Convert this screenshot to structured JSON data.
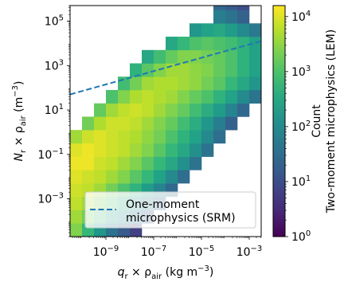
{
  "chart_data": {
    "type": "heatmap",
    "title": "",
    "xscale": "log",
    "yscale": "log",
    "xlim_log10": [
      -10.5,
      -2.5
    ],
    "ylim_log10": [
      -4.7,
      5.7
    ],
    "xlabel": {
      "main": "q",
      "sub1": "r",
      "mid": " × ρ",
      "sub2": "air",
      "unit": " (kg m",
      "exp": "−3",
      "close": ")"
    },
    "ylabel": {
      "main": "N",
      "sub1": "r",
      "mid": " × ρ",
      "sub2": "air",
      "unit": " (m",
      "exp": "−3",
      "close": ")"
    },
    "xticks": [
      {
        "log": -9,
        "base": "10",
        "exp": "−9"
      },
      {
        "log": -7,
        "base": "10",
        "exp": "−7"
      },
      {
        "log": -5,
        "base": "10",
        "exp": "−5"
      },
      {
        "log": -3,
        "base": "10",
        "exp": "−3"
      }
    ],
    "yticks": [
      {
        "log": -3,
        "base": "10",
        "exp": "−3"
      },
      {
        "log": -1,
        "base": "10",
        "exp": "−1"
      },
      {
        "log": 1,
        "base": "10",
        "exp": "1"
      },
      {
        "log": 3,
        "base": "10",
        "exp": "3"
      },
      {
        "log": 5,
        "base": "10",
        "exp": "5"
      }
    ],
    "bin_width_log10": 0.5,
    "bin_height_log10": 0.6,
    "colorbar": {
      "label_line1": "Count",
      "label_line2": "Two-moment microphysics (LEM)",
      "scale": "log",
      "range_log10": [
        0,
        4.2
      ],
      "ticks": [
        {
          "log": 0,
          "base": "10",
          "exp": "0"
        },
        {
          "log": 1,
          "base": "10",
          "exp": "1"
        },
        {
          "log": 2,
          "base": "10",
          "exp": "2"
        },
        {
          "log": 3,
          "base": "10",
          "exp": "3"
        },
        {
          "log": 4,
          "base": "10",
          "exp": "4"
        }
      ]
    },
    "line": {
      "name": "One-moment microphysics (SRM)",
      "style": "dashed",
      "color": "#1f77b4",
      "points_log10": [
        [
          -10.5,
          1.7
        ],
        [
          -2.5,
          4.1
        ]
      ]
    },
    "legend": {
      "location": "lower center",
      "line1": "One-moment",
      "line2": "microphysics (SRM)"
    },
    "rows": [
      {
        "ylow": -4.7,
        "x0": -10.5,
        "log_counts": [
          3.4,
          2.8,
          2.2,
          1.6,
          1.2,
          0.8
        ]
      },
      {
        "ylow": -4.1,
        "x0": -10.5,
        "log_counts": [
          3.6,
          3.3,
          2.9,
          2.5,
          2.0,
          1.6,
          1.2
        ]
      },
      {
        "ylow": -3.5,
        "x0": -10.5,
        "log_counts": [
          3.8,
          3.6,
          3.3,
          3.0,
          2.6,
          2.2,
          1.8,
          1.3
        ]
      },
      {
        "ylow": -2.9,
        "x0": -10.5,
        "log_counts": [
          3.9,
          3.8,
          3.6,
          3.3,
          3.0,
          2.7,
          2.3,
          1.9,
          1.4
        ]
      },
      {
        "ylow": -2.3,
        "x0": -10.5,
        "log_counts": [
          4.0,
          3.9,
          3.8,
          3.6,
          3.4,
          3.1,
          2.8,
          2.4,
          2.0,
          1.5
        ]
      },
      {
        "ylow": -1.7,
        "x0": -10.5,
        "log_counts": [
          4.1,
          4.1,
          3.9,
          3.8,
          3.6,
          3.4,
          3.1,
          2.8,
          2.5,
          2.1,
          1.6
        ]
      },
      {
        "ylow": -1.1,
        "x0": -10.5,
        "log_counts": [
          4.0,
          4.1,
          4.0,
          3.9,
          3.8,
          3.6,
          3.4,
          3.1,
          2.8,
          2.5,
          2.1,
          1.6
        ]
      },
      {
        "ylow": -0.5,
        "x0": -10.5,
        "log_counts": [
          3.6,
          3.9,
          4.0,
          3.9,
          3.8,
          3.7,
          3.5,
          3.3,
          3.0,
          2.7,
          2.4,
          2.0,
          1.5
        ]
      },
      {
        "ylow": 0.1,
        "x0": -10.0,
        "log_counts": [
          3.3,
          3.7,
          3.9,
          3.9,
          3.8,
          3.6,
          3.4,
          3.2,
          2.9,
          2.6,
          2.2,
          1.8,
          1.3
        ]
      },
      {
        "ylow": 0.7,
        "x0": -9.5,
        "log_counts": [
          3.2,
          3.6,
          3.8,
          3.9,
          3.8,
          3.6,
          3.4,
          3.2,
          2.9,
          2.6,
          2.3,
          1.9,
          1.4
        ]
      },
      {
        "ylow": 1.3,
        "x0": -9.0,
        "log_counts": [
          3.0,
          3.4,
          3.7,
          3.8,
          3.7,
          3.6,
          3.4,
          3.2,
          3.0,
          2.7,
          2.4,
          2.0,
          1.6
        ]
      },
      {
        "ylow": 1.9,
        "x0": -8.5,
        "log_counts": [
          2.9,
          3.3,
          3.6,
          3.7,
          3.7,
          3.6,
          3.5,
          3.3,
          3.1,
          2.8,
          2.5,
          2.2,
          1.8
        ]
      },
      {
        "ylow": 2.5,
        "x0": -8.0,
        "log_counts": [
          2.7,
          3.1,
          3.4,
          3.6,
          3.6,
          3.5,
          3.4,
          3.2,
          3.0,
          2.7,
          2.4,
          2.0
        ]
      },
      {
        "ylow": 3.1,
        "x0": -7.5,
        "log_counts": [
          2.5,
          2.9,
          3.2,
          3.4,
          3.4,
          3.3,
          3.2,
          3.0,
          2.7,
          2.4,
          2.1
        ]
      },
      {
        "ylow": 3.7,
        "x0": -6.5,
        "log_counts": [
          2.5,
          2.8,
          3.0,
          3.1,
          3.0,
          2.9,
          2.7,
          2.4,
          2.0
        ]
      },
      {
        "ylow": 4.3,
        "x0": -5.5,
        "log_counts": [
          2.2,
          2.4,
          2.5,
          2.3,
          2.0,
          1.7
        ]
      },
      {
        "ylow": 4.9,
        "x0": -4.5,
        "log_counts": [
          1.8,
          1.6,
          1.3
        ]
      },
      {
        "ylow": 5.5,
        "x0": -4.5,
        "log_counts": [
          1.4,
          1.2,
          1.0
        ]
      }
    ]
  }
}
